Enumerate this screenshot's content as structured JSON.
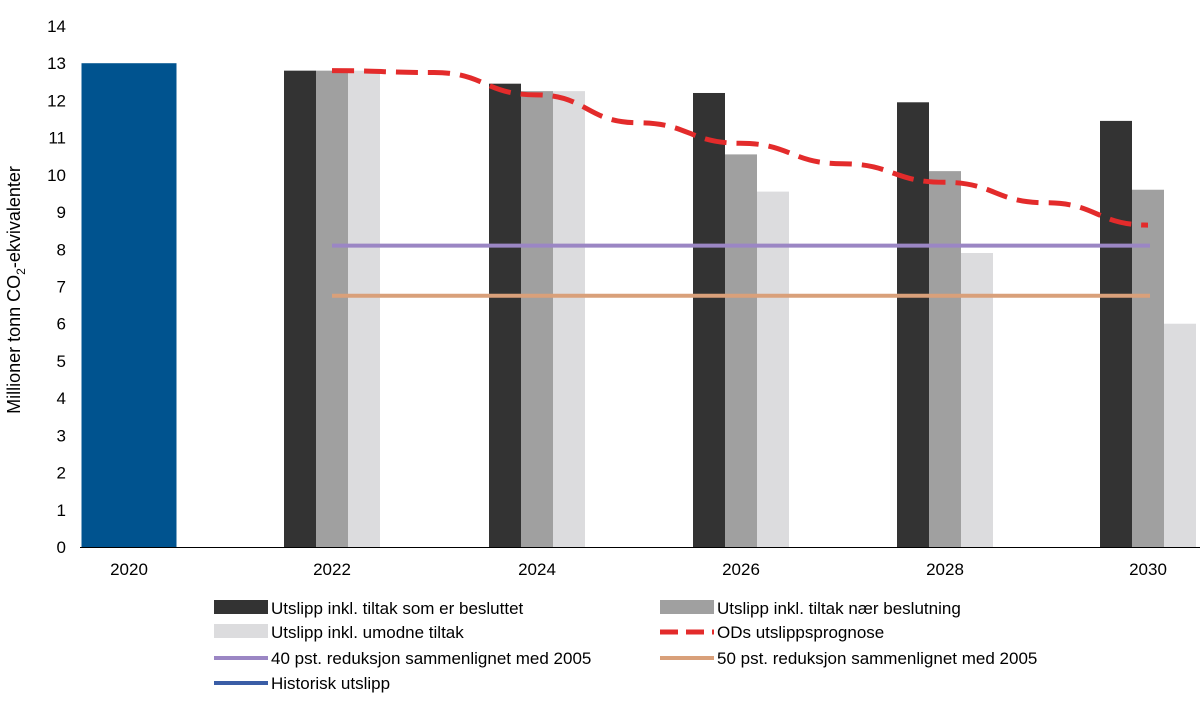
{
  "chart_data": {
    "type": "bar",
    "title": "",
    "xlabel": "",
    "ylabel_main": "Millioner tonn CO",
    "ylabel_sub": "2",
    "ylabel_tail": "-ekvivalenter",
    "ylim": [
      0,
      14
    ],
    "yticks": [
      0,
      1,
      2,
      3,
      4,
      5,
      6,
      7,
      8,
      9,
      10,
      11,
      12,
      13,
      14
    ],
    "categories": [
      "2020",
      "2022",
      "2024",
      "2026",
      "2028",
      "2030"
    ],
    "series": [
      {
        "name": "Historisk utslipp",
        "kind": "bar",
        "color": "#00538f",
        "values": [
          13.0,
          null,
          null,
          null,
          null,
          null
        ]
      },
      {
        "name": "Utslipp inkl. tiltak som er besluttet",
        "kind": "bar",
        "color": "#333333",
        "values": [
          null,
          12.8,
          12.45,
          12.2,
          11.95,
          11.45
        ]
      },
      {
        "name": "Utslipp inkl. tiltak nær beslutning",
        "kind": "bar",
        "color": "#a0a0a0",
        "values": [
          null,
          12.8,
          12.25,
          10.55,
          10.1,
          9.6
        ]
      },
      {
        "name": "Utslipp inkl. umodne tiltak",
        "kind": "bar",
        "color": "#dcdcde",
        "values": [
          null,
          12.8,
          12.25,
          9.55,
          7.9,
          6.0
        ]
      },
      {
        "name": "ODs utslippsprognose",
        "kind": "line",
        "style": "dashed",
        "color": "#e32b2b",
        "x": [
          2022,
          2023,
          2024,
          2025,
          2026,
          2027,
          2028,
          2029,
          2030
        ],
        "values": [
          12.8,
          12.75,
          12.15,
          11.4,
          10.85,
          10.3,
          9.8,
          9.25,
          8.65
        ]
      },
      {
        "name": "40 pst. reduksjon sammenlignet med 2005",
        "kind": "hline",
        "color": "#9b86c4",
        "value": 8.1,
        "from": 2022,
        "to": 2030
      },
      {
        "name": "50 pst. reduksjon sammenlignet med 2005",
        "kind": "hline",
        "color": "#d9a07a",
        "value": 6.75,
        "from": 2022,
        "to": 2030
      }
    ],
    "legend": [
      {
        "label": "Utslipp inkl. tiltak som er besluttet",
        "swatch": "bar",
        "color": "#333333"
      },
      {
        "label": "Utslipp inkl. tiltak nær beslutning",
        "swatch": "bar",
        "color": "#a0a0a0"
      },
      {
        "label": "Utslipp inkl. umodne tiltak",
        "swatch": "bar",
        "color": "#dcdcde"
      },
      {
        "label": "ODs utslippsprognose",
        "swatch": "dash",
        "color": "#e32b2b"
      },
      {
        "label": "40 pst. reduksjon sammenlignet med 2005",
        "swatch": "line",
        "color": "#9b86c4"
      },
      {
        "label": "50 pst. reduksjon sammenlignet med 2005",
        "swatch": "line",
        "color": "#d9a07a"
      },
      {
        "label": "Historisk utslipp",
        "swatch": "line",
        "color": "#3a5da6"
      }
    ],
    "legend_position": "bottom"
  }
}
